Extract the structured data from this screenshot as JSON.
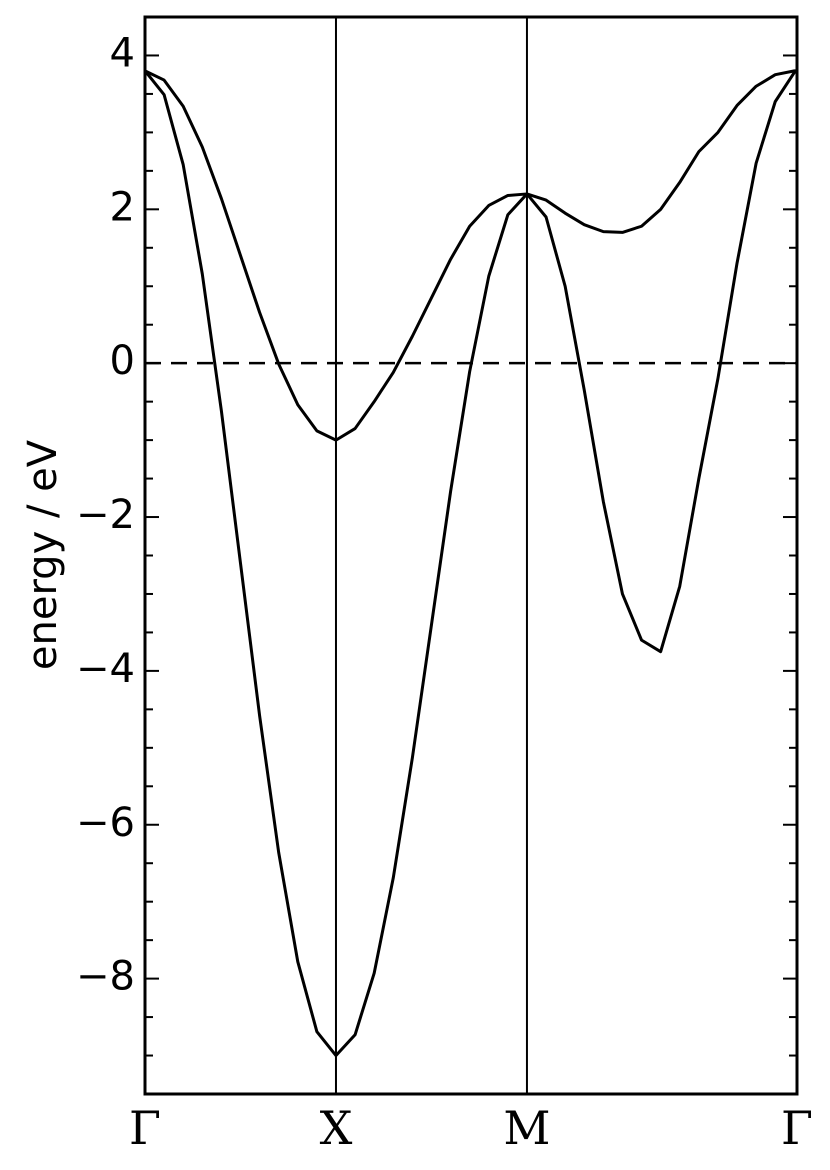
{
  "chart_data": {
    "type": "line",
    "ylabel": "energy / eV",
    "x": [
      0,
      0.1,
      0.2,
      0.3,
      0.4,
      0.5,
      0.6,
      0.7,
      0.8,
      0.9,
      1.0,
      1.1,
      1.2,
      1.3,
      1.4,
      1.5,
      1.6,
      1.7,
      1.8,
      1.9,
      2.0,
      2.1,
      2.2,
      2.3,
      2.4,
      2.5,
      2.6,
      2.7,
      2.8,
      2.9,
      3.0,
      3.1,
      3.2,
      3.3,
      3.4,
      3.414
    ],
    "series": [
      {
        "color": "#000000",
        "values": [
          3.8,
          3.49,
          2.58,
          1.16,
          -0.62,
          -2.6,
          -4.58,
          -6.36,
          -7.78,
          -8.69,
          -9.0,
          -8.73,
          -7.93,
          -6.69,
          -5.13,
          -3.4,
          -1.67,
          -0.11,
          1.13,
          1.93,
          2.2,
          1.9,
          1.0,
          -0.35,
          -1.8,
          -3.0,
          -3.6,
          -3.75,
          -2.9,
          -1.5,
          -0.2,
          1.3,
          2.6,
          3.4,
          3.78,
          3.8
        ]
      },
      {
        "color": "#000000",
        "values": [
          3.8,
          3.68,
          3.34,
          2.81,
          2.14,
          1.4,
          0.66,
          -0.01,
          -0.54,
          -0.88,
          -1.0,
          -0.85,
          -0.5,
          -0.12,
          0.35,
          0.85,
          1.35,
          1.78,
          2.05,
          2.18,
          2.2,
          2.12,
          1.95,
          1.8,
          1.71,
          1.7,
          1.78,
          2.0,
          2.35,
          2.75,
          3.0,
          3.35,
          3.6,
          3.75,
          3.8,
          3.8
        ]
      }
    ],
    "xlim": [
      0,
      3.414
    ],
    "xticks": [
      {
        "value": 0,
        "label": "Γ"
      },
      {
        "value": 1,
        "label": "X"
      },
      {
        "value": 2,
        "label": "M"
      },
      {
        "value": 3.414,
        "label": "Γ"
      }
    ],
    "ylim": [
      -9.5,
      4.5
    ],
    "yticks": [
      {
        "value": -8,
        "label": "−8"
      },
      {
        "value": -6,
        "label": "−6"
      },
      {
        "value": -4,
        "label": "−4"
      },
      {
        "value": -2,
        "label": "−2"
      },
      0,
      2,
      4
    ],
    "yminorticks": [
      -9.5,
      -9,
      -8.5,
      -7.5,
      -7,
      -6.5,
      -5.5,
      -5,
      -4.5,
      -3.5,
      -3,
      -2.5,
      -1.5,
      -1,
      -0.5,
      0.5,
      1,
      1.5,
      2.5,
      3,
      3.5,
      4.5
    ],
    "reference_line": 0
  }
}
